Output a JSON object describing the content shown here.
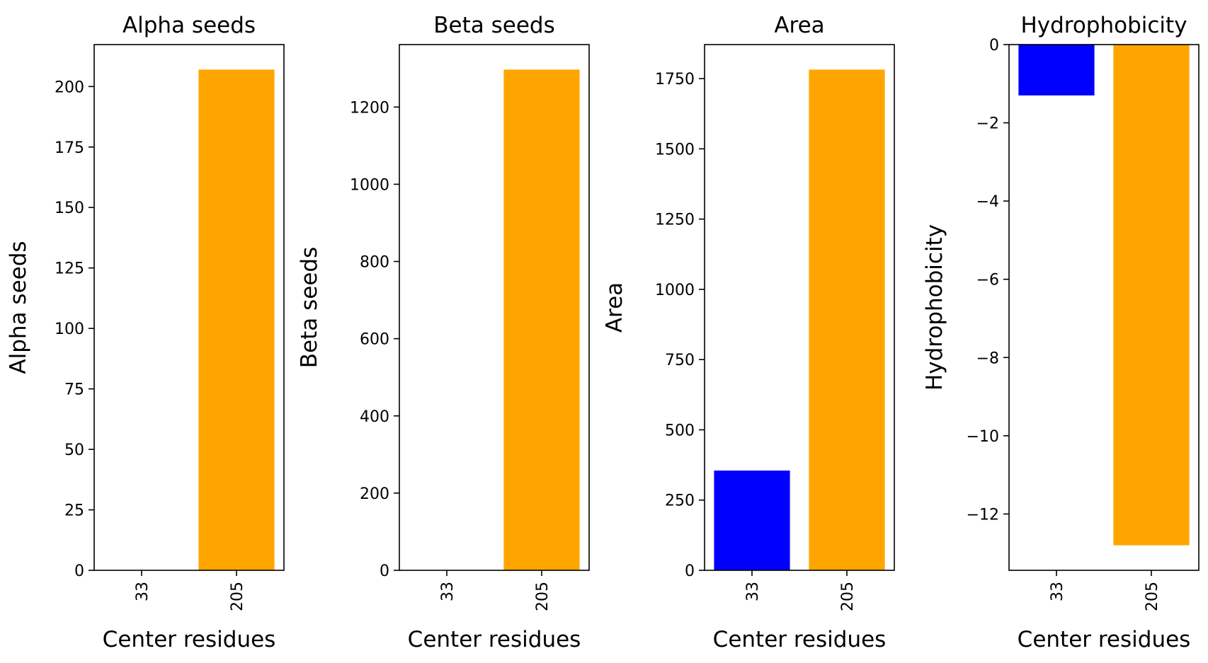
{
  "colors": {
    "series_a": "#0000ff",
    "series_b": "#ffa500",
    "axis": "#000000",
    "background": "#ffffff"
  },
  "chart_data": [
    {
      "type": "bar",
      "title": "Alpha seeds",
      "xlabel": "Center residues",
      "ylabel": "Alpha seeds",
      "categories": [
        "33",
        "205"
      ],
      "values": [
        0,
        207
      ],
      "bar_colors": [
        "#0000ff",
        "#ffa500"
      ],
      "ylim": [
        0,
        217.35
      ],
      "yticks": [
        0,
        25,
        50,
        75,
        100,
        125,
        150,
        175,
        200
      ],
      "ytick_labels": [
        "0",
        "25",
        "50",
        "75",
        "100",
        "125",
        "150",
        "175",
        "200"
      ],
      "grid": false,
      "legend": "none"
    },
    {
      "type": "bar",
      "title": "Beta seeds",
      "xlabel": "Center residues",
      "ylabel": "Beta seeds",
      "categories": [
        "33",
        "205"
      ],
      "values": [
        0,
        1297
      ],
      "bar_colors": [
        "#0000ff",
        "#ffa500"
      ],
      "ylim": [
        0,
        1361.85
      ],
      "yticks": [
        0,
        200,
        400,
        600,
        800,
        1000,
        1200
      ],
      "ytick_labels": [
        "0",
        "200",
        "400",
        "600",
        "800",
        "1000",
        "1200"
      ],
      "grid": false,
      "legend": "none"
    },
    {
      "type": "bar",
      "title": "Area",
      "xlabel": "Center residues",
      "ylabel": "Area",
      "categories": [
        "33",
        "205"
      ],
      "values": [
        355,
        1782
      ],
      "bar_colors": [
        "#0000ff",
        "#ffa500"
      ],
      "ylim": [
        0,
        1871.1
      ],
      "yticks": [
        0,
        250,
        500,
        750,
        1000,
        1250,
        1500,
        1750
      ],
      "ytick_labels": [
        "0",
        "250",
        "500",
        "750",
        "1000",
        "1250",
        "1500",
        "1750"
      ],
      "grid": false,
      "legend": "none"
    },
    {
      "type": "bar",
      "title": "Hydrophobicity",
      "xlabel": "Center residues",
      "ylabel": "Hydrophobicity",
      "categories": [
        "33",
        "205"
      ],
      "values": [
        -1.3,
        -12.8
      ],
      "bar_colors": [
        "#0000ff",
        "#ffa500"
      ],
      "ylim": [
        -13.44,
        0
      ],
      "yticks": [
        0,
        -2,
        -4,
        -6,
        -8,
        -10,
        -12
      ],
      "ytick_labels": [
        "0",
        "−2",
        "−4",
        "−6",
        "−8",
        "−10",
        "−12"
      ],
      "grid": false,
      "legend": "none"
    }
  ]
}
